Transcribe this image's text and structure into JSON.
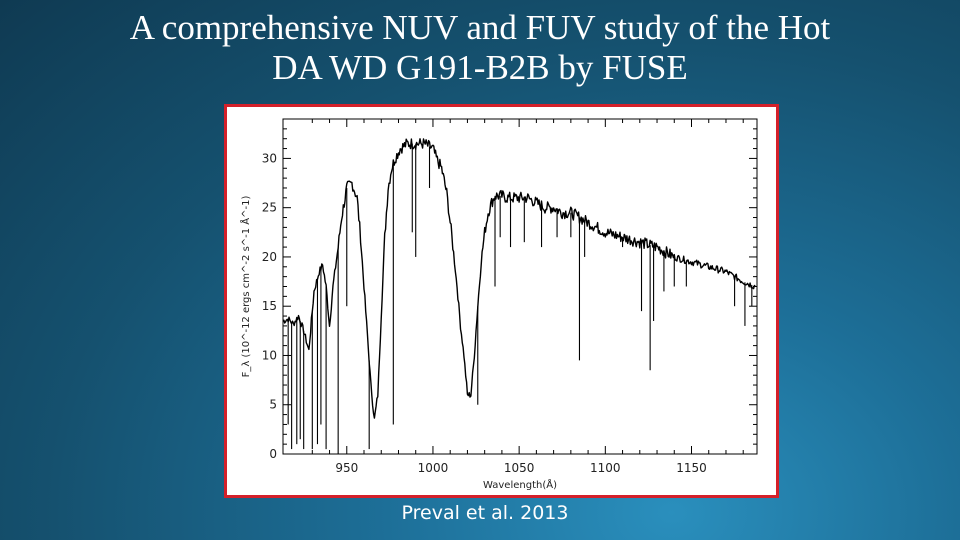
{
  "slide": {
    "title_line1": "A comprehensive NUV and FUV study of the Hot",
    "title_line2": "DA WD G191-B2B by FUSE",
    "caption": "Preval et al. 2013"
  },
  "colors": {
    "frame_border": "#d4202a",
    "spectrum": "#000000"
  },
  "chart_data": {
    "type": "line",
    "xlabel": "Wavelength(Å)",
    "ylabel": "F_λ (10^-12 ergs cm^-2 s^-1 Å^-1)",
    "xlim": [
      913,
      1188
    ],
    "ylim": [
      0,
      34
    ],
    "xticks": [
      950,
      1000,
      1050,
      1100,
      1150
    ],
    "yticks": [
      0,
      5,
      10,
      15,
      20,
      25,
      30
    ],
    "grid": false,
    "series": [
      {
        "x": [
          913,
          916,
          919,
          922,
          925,
          928,
          931,
          934,
          936,
          938,
          940,
          942,
          945,
          947,
          950,
          953,
          956,
          958,
          960,
          962,
          964,
          966,
          968,
          970,
          972,
          974,
          976,
          978,
          981,
          985,
          990,
          995,
          1000,
          1002,
          1005,
          1008,
          1011,
          1014,
          1016,
          1018,
          1020,
          1022,
          1024,
          1026,
          1028,
          1030,
          1032,
          1034,
          1036,
          1038,
          1040,
          1043,
          1046,
          1050,
          1055,
          1060,
          1065,
          1070,
          1075,
          1080,
          1090,
          1100,
          1110,
          1120,
          1130,
          1140,
          1150,
          1160,
          1170,
          1180,
          1187
        ],
        "y": [
          13.5,
          13.7,
          13.2,
          14.0,
          12.5,
          10.5,
          16.5,
          18.5,
          19.2,
          17.0,
          13.0,
          17.0,
          21.0,
          24.0,
          27.0,
          27.5,
          26.0,
          22.0,
          17.0,
          12.0,
          7.0,
          3.5,
          6.0,
          14.0,
          22.0,
          27.0,
          29.0,
          30.0,
          31.0,
          31.5,
          31.5,
          31.5,
          31.0,
          30.0,
          29.0,
          26.5,
          22.0,
          17.0,
          13.0,
          10.0,
          6.0,
          6.0,
          10.0,
          15.0,
          19.5,
          22.5,
          24.5,
          25.5,
          26.2,
          26.2,
          26.2,
          26.0,
          26.0,
          26.0,
          26.0,
          25.5,
          25.0,
          25.0,
          24.5,
          24.5,
          23.5,
          22.5,
          22.0,
          21.5,
          21.0,
          20.0,
          19.5,
          19.0,
          18.5,
          17.5,
          17.0
        ]
      }
    ],
    "absorption_lines": [
      {
        "x": 916,
        "depth_to": 3.0
      },
      {
        "x": 918,
        "depth_to": 0.5
      },
      {
        "x": 921,
        "depth_to": 1.0
      },
      {
        "x": 923,
        "depth_to": 1.5
      },
      {
        "x": 925,
        "depth_to": 0.5
      },
      {
        "x": 930,
        "depth_to": 0.5
      },
      {
        "x": 933,
        "depth_to": 1.0
      },
      {
        "x": 935,
        "depth_to": 3.0
      },
      {
        "x": 938,
        "depth_to": 0.5
      },
      {
        "x": 945,
        "depth_to": 0.0
      },
      {
        "x": 950,
        "depth_to": 15.0
      },
      {
        "x": 963,
        "depth_to": 0.5
      },
      {
        "x": 977,
        "depth_to": 3.0
      },
      {
        "x": 988,
        "depth_to": 22.5
      },
      {
        "x": 990,
        "depth_to": 20.0
      },
      {
        "x": 998,
        "depth_to": 27.0
      },
      {
        "x": 1026,
        "depth_to": 5.0
      },
      {
        "x": 1036,
        "depth_to": 17.0
      },
      {
        "x": 1039,
        "depth_to": 22.0
      },
      {
        "x": 1045,
        "depth_to": 21.0
      },
      {
        "x": 1053,
        "depth_to": 21.5
      },
      {
        "x": 1063,
        "depth_to": 21.0
      },
      {
        "x": 1072,
        "depth_to": 22.0
      },
      {
        "x": 1080,
        "depth_to": 22.0
      },
      {
        "x": 1085,
        "depth_to": 9.5
      },
      {
        "x": 1088,
        "depth_to": 20.0
      },
      {
        "x": 1110,
        "depth_to": 21.0
      },
      {
        "x": 1121,
        "depth_to": 14.5
      },
      {
        "x": 1126,
        "depth_to": 8.5
      },
      {
        "x": 1128,
        "depth_to": 13.5
      },
      {
        "x": 1134,
        "depth_to": 16.5
      },
      {
        "x": 1140,
        "depth_to": 17.0
      },
      {
        "x": 1147,
        "depth_to": 17.0
      },
      {
        "x": 1175,
        "depth_to": 15.0
      },
      {
        "x": 1181,
        "depth_to": 13.0
      },
      {
        "x": 1185,
        "depth_to": 15.0
      }
    ]
  }
}
